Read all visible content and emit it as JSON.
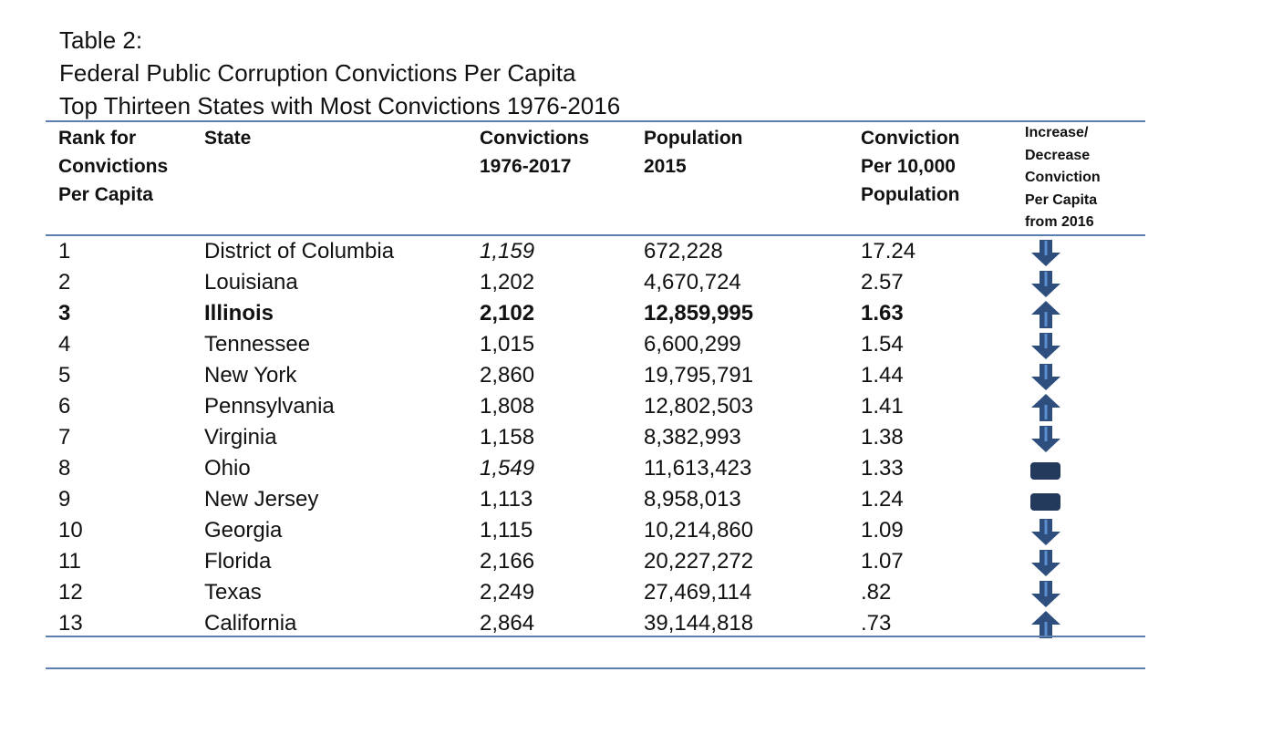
{
  "title": {
    "line1": "Table 2:",
    "line2": "Federal Public Corruption Convictions Per Capita",
    "line3": "Top Thirteen States with Most Convictions 1976-2016"
  },
  "headers": {
    "rank": [
      "Rank for",
      "Convictions",
      "Per Capita"
    ],
    "state": [
      "State"
    ],
    "convictions": [
      "Convictions",
      "1976-2017"
    ],
    "population": [
      "Population",
      "2015"
    ],
    "rate": [
      "Conviction",
      "Per 10,000",
      "Population"
    ],
    "change": [
      "Increase/",
      "Decrease",
      "Conviction",
      "Per Capita",
      "from 2016"
    ]
  },
  "rows": [
    {
      "rank": "1",
      "state": "District of Columbia",
      "convictions": "1,159",
      "population": "672,228",
      "rate": "17.24",
      "change": "decrease",
      "italic_convictions": true,
      "bold": false
    },
    {
      "rank": "2",
      "state": "Louisiana",
      "convictions": "1,202",
      "population": "4,670,724",
      "rate": "2.57",
      "change": "decrease",
      "italic_convictions": false,
      "bold": false
    },
    {
      "rank": "3",
      "state": "Illinois",
      "convictions": "2,102",
      "population": "12,859,995",
      "rate": "1.63",
      "change": "increase",
      "italic_convictions": false,
      "bold": true
    },
    {
      "rank": "4",
      "state": "Tennessee",
      "convictions": "1,015",
      "population": "6,600,299",
      "rate": "1.54",
      "change": "decrease",
      "italic_convictions": false,
      "bold": false
    },
    {
      "rank": "5",
      "state": "New York",
      "convictions": "2,860",
      "population": "19,795,791",
      "rate": "1.44",
      "change": "decrease",
      "italic_convictions": false,
      "bold": false
    },
    {
      "rank": "6",
      "state": "Pennsylvania",
      "convictions": "1,808",
      "population": "12,802,503",
      "rate": "1.41",
      "change": "increase",
      "italic_convictions": false,
      "bold": false
    },
    {
      "rank": "7",
      "state": "Virginia",
      "convictions": "1,158",
      "population": "8,382,993",
      "rate": "1.38",
      "change": "decrease",
      "italic_convictions": false,
      "bold": false
    },
    {
      "rank": "8",
      "state": "Ohio",
      "convictions": "1,549",
      "population": "11,613,423",
      "rate": "1.33",
      "change": "no-change",
      "italic_convictions": true,
      "bold": false
    },
    {
      "rank": "9",
      "state": "New Jersey",
      "convictions": "1,113",
      "population": "8,958,013",
      "rate": "1.24",
      "change": "no-change",
      "italic_convictions": false,
      "bold": false
    },
    {
      "rank": "10",
      "state": "Georgia",
      "convictions": "1,115",
      "population": "10,214,860",
      "rate": "1.09",
      "change": "decrease",
      "italic_convictions": false,
      "bold": false
    },
    {
      "rank": "11",
      "state": "Florida",
      "convictions": "2,166",
      "population": "20,227,272",
      "rate": "1.07",
      "change": "decrease",
      "italic_convictions": false,
      "bold": false
    },
    {
      "rank": "12",
      "state": "Texas",
      "convictions": "2,249",
      "population": "27,469,114",
      "rate": ".82",
      "change": "decrease",
      "italic_convictions": false,
      "bold": false
    },
    {
      "rank": "13",
      "state": "California",
      "convictions": "2,864",
      "population": "39,144,818",
      "rate": ".73",
      "change": "increase",
      "italic_convictions": false,
      "bold": false
    }
  ],
  "colors": {
    "rule": "#5b7fae",
    "arrow_fill": "#2e4e7e",
    "arrow_stripe": "#5c8fd0",
    "flat_fill": "#233a5c"
  }
}
